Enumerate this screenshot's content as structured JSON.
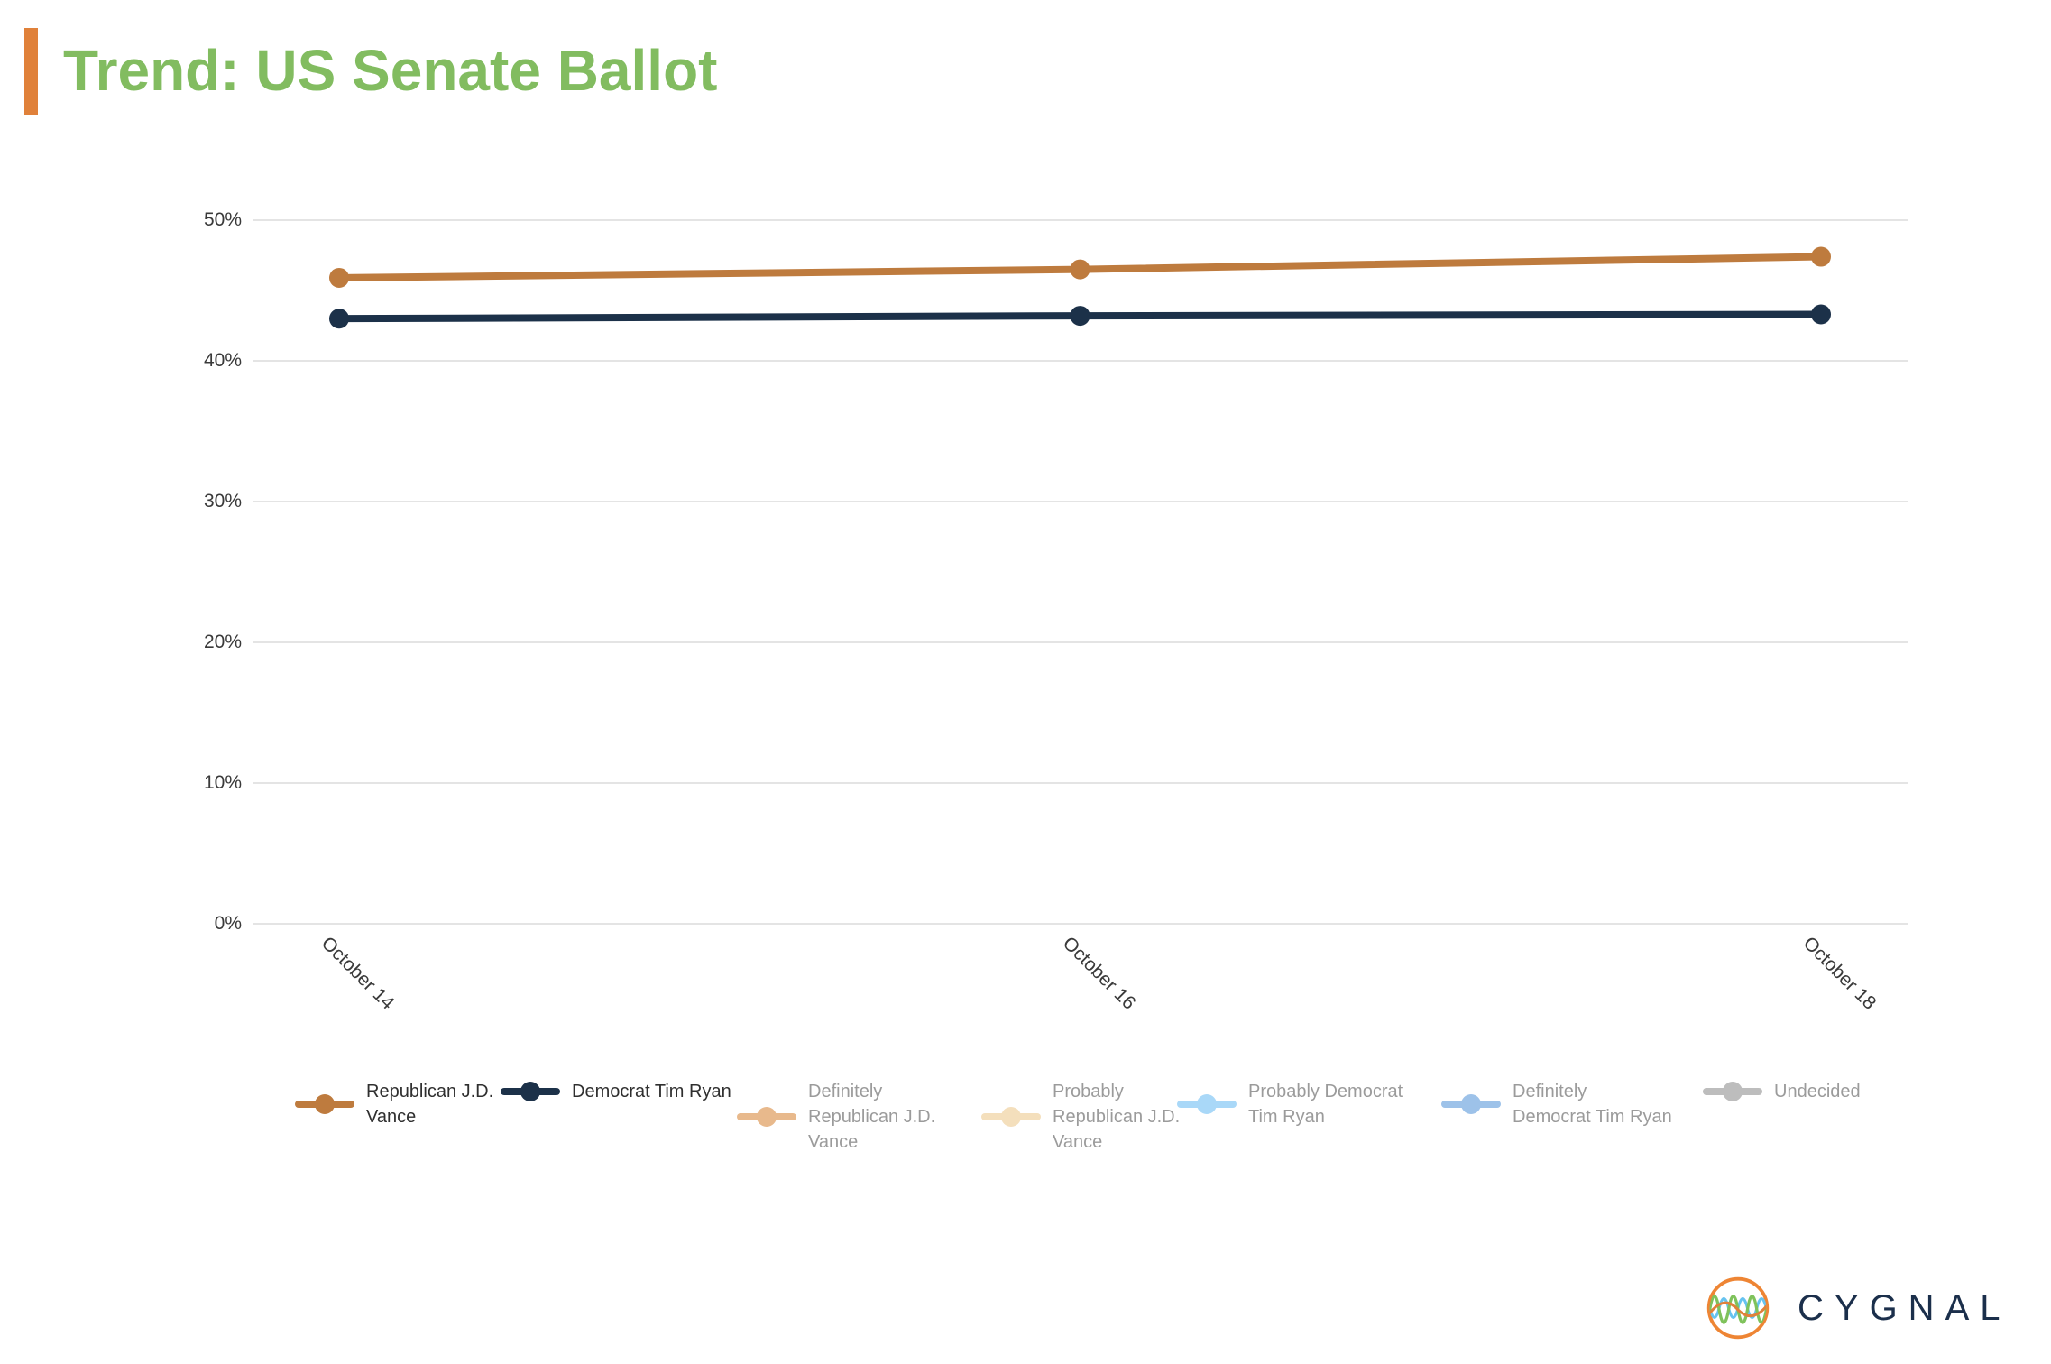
{
  "title": {
    "text": "Trend: US Senate Ballot",
    "color": "#82BC60",
    "accent_bar_color": "#E0813A"
  },
  "chart_data": {
    "type": "line",
    "title": "Trend: US Senate Ballot",
    "x": [
      "October 14",
      "October 16",
      "October 18"
    ],
    "series": [
      {
        "name": "Republican J.D. Vance",
        "values": [
          45.9,
          46.5,
          47.4
        ],
        "color": "#BE7B3E",
        "active": true,
        "legend_lines": [
          "Republican J.D.",
          "Vance"
        ]
      },
      {
        "name": "Democrat Tim Ryan",
        "values": [
          43.0,
          43.2,
          43.3
        ],
        "color": "#1C3149",
        "active": true,
        "legend_lines": [
          "Democrat Tim Ryan"
        ]
      },
      {
        "name": "Definitely Republican J.D. Vance",
        "values": [],
        "color": "#E8B98C",
        "active": false,
        "legend_lines": [
          "Definitely",
          "Republican J.D.",
          "Vance"
        ]
      },
      {
        "name": "Probably Republican J.D. Vance",
        "values": [],
        "color": "#F4DFBC",
        "active": false,
        "legend_lines": [
          "Probably",
          "Republican J.D.",
          "Vance"
        ]
      },
      {
        "name": "Probably Democrat Tim Ryan",
        "values": [],
        "color": "#A9D8F8",
        "active": false,
        "legend_lines": [
          "Probably Democrat",
          "Tim Ryan"
        ]
      },
      {
        "name": "Definitely Democrat Tim Ryan",
        "values": [],
        "color": "#9DC2E9",
        "active": false,
        "legend_lines": [
          "Definitely",
          "Democrat Tim Ryan"
        ]
      },
      {
        "name": "Undecided",
        "values": [],
        "color": "#BDBDBD",
        "active": false,
        "legend_lines": [
          "Undecided"
        ]
      }
    ],
    "yticks": [
      {
        "label": "0%",
        "value": 0
      },
      {
        "label": "10%",
        "value": 10
      },
      {
        "label": "20%",
        "value": 20
      },
      {
        "label": "30%",
        "value": 30
      },
      {
        "label": "40%",
        "value": 40
      },
      {
        "label": "50%",
        "value": 50
      }
    ],
    "ylim": [
      0,
      52
    ],
    "grid": true,
    "legend_position": "bottom",
    "gridline_color": "#E4E4E4",
    "axis_text_color": "#3A3A3A",
    "legend_active_text_color": "#2F2F2F",
    "legend_inactive_text_color": "#9B9B9B"
  },
  "logo": {
    "text": "CYGNAL",
    "circle_color": "#EE8534",
    "wave_green": "#7FC25B",
    "wave_blue": "#67C3F0",
    "wave_orange": "#E0813A",
    "text_color": "#1B2F4B"
  }
}
